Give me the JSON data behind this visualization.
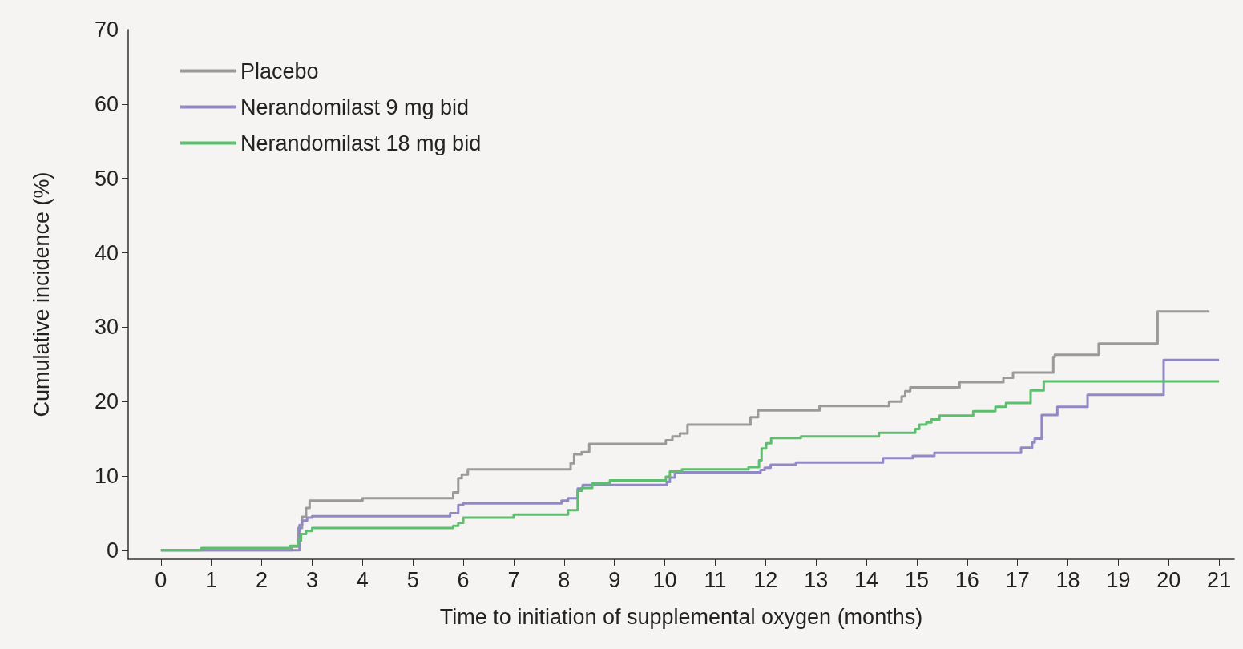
{
  "chart_data": {
    "type": "step",
    "xlabel": "Time to initiation of supplemental oxygen (months)",
    "ylabel": "Cumulative incidence (%)",
    "xlim": [
      -0.65,
      21.3
    ],
    "ylim": [
      -1.2,
      70
    ],
    "xticks": [
      0,
      1,
      2,
      3,
      4,
      5,
      6,
      7,
      8,
      9,
      10,
      11,
      12,
      13,
      14,
      15,
      16,
      17,
      18,
      19,
      20,
      21
    ],
    "yticks": [
      0,
      10,
      20,
      30,
      40,
      50,
      60,
      70
    ],
    "grid": false,
    "legend": "top left",
    "marker": "none",
    "line_style": "solid",
    "series": [
      {
        "name": "Placebo",
        "color": "#9a9a9a",
        "x": [
          0,
          2.6,
          2.72,
          2.8,
          2.88,
          2.95,
          4.0,
          5.8,
          5.9,
          5.97,
          6.09,
          8.13,
          8.2,
          8.35,
          8.5,
          10.02,
          10.15,
          10.3,
          10.45,
          11.7,
          11.85,
          13.07,
          14.45,
          14.7,
          14.77,
          14.87,
          15.85,
          16.72,
          16.91,
          17.71,
          17.74,
          18.61,
          19.78,
          20.81
        ],
        "values": [
          0,
          0.5,
          3.0,
          4.5,
          5.7,
          6.7,
          7.0,
          7.8,
          9.7,
          10.2,
          10.9,
          11.7,
          12.9,
          13.2,
          14.3,
          14.8,
          15.3,
          15.7,
          16.9,
          17.9,
          18.8,
          19.4,
          20.0,
          20.7,
          21.4,
          21.9,
          22.6,
          23.2,
          23.9,
          26.0,
          26.3,
          27.8,
          32.1,
          32.1
        ]
      },
      {
        "name": "Nerandomilast 9 mg bid",
        "color": "#9189c4",
        "x": [
          0,
          2.75,
          2.8,
          2.9,
          3.0,
          5.74,
          5.9,
          6.0,
          7.95,
          8.08,
          8.27,
          8.37,
          10.04,
          10.1,
          10.2,
          11.9,
          11.98,
          12.1,
          12.6,
          14.33,
          14.92,
          15.35,
          17.07,
          17.29,
          17.34,
          17.48,
          17.79,
          18.39,
          19.9,
          21
        ],
        "values": [
          0,
          3.4,
          4.0,
          4.4,
          4.6,
          5.0,
          6.1,
          6.3,
          6.7,
          7.0,
          8.3,
          8.8,
          9.2,
          9.8,
          10.5,
          10.8,
          11.1,
          11.5,
          11.8,
          12.4,
          12.7,
          13.1,
          13.8,
          14.5,
          15.0,
          18.2,
          19.3,
          20.9,
          25.6,
          25.6
        ]
      },
      {
        "name": "Nerandomilast 18 mg bid",
        "color": "#5cbf6e",
        "x": [
          0,
          0.8,
          2.56,
          2.72,
          2.78,
          2.88,
          3.0,
          5.8,
          5.9,
          6.0,
          7.0,
          8.08,
          8.27,
          8.35,
          8.56,
          8.91,
          10.02,
          10.1,
          10.34,
          11.66,
          11.87,
          11.92,
          12.01,
          12.11,
          12.7,
          14.25,
          14.97,
          15.05,
          15.19,
          15.29,
          15.45,
          16.12,
          16.56,
          16.77,
          17.26,
          17.52,
          21
        ],
        "values": [
          0,
          0.3,
          0.6,
          1.3,
          2.2,
          2.6,
          3.0,
          3.3,
          3.7,
          4.4,
          4.8,
          5.4,
          8.0,
          8.4,
          9.0,
          9.4,
          9.9,
          10.6,
          10.9,
          11.2,
          12.1,
          13.7,
          14.4,
          15.1,
          15.3,
          15.8,
          16.3,
          16.9,
          17.2,
          17.6,
          18.1,
          18.7,
          19.3,
          19.8,
          21.5,
          22.7,
          22.7
        ]
      }
    ]
  }
}
